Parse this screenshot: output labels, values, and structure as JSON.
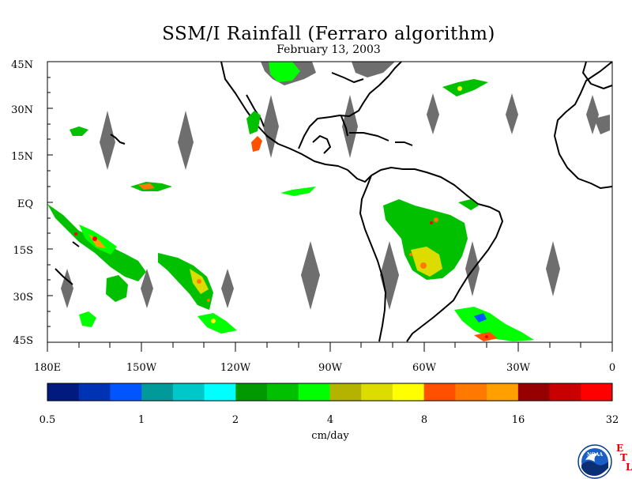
{
  "title": "SSM/I Rainfall (Ferraro algorithm)",
  "subtitle": "February 13, 2003",
  "map": {
    "lat_labels": [
      "45N",
      "30N",
      "15N",
      "EQ",
      "15S",
      "30S",
      "45S"
    ],
    "lon_labels": [
      "180E",
      "150W",
      "120W",
      "90W",
      "60W",
      "30W",
      "0"
    ],
    "extent": {
      "lon": [
        -180,
        0
      ],
      "lat": [
        -45,
        45
      ]
    }
  },
  "colorbar": {
    "colors": [
      "#001a80",
      "#0033b3",
      "#0055ff",
      "#009a9a",
      "#00c8c8",
      "#00ffff",
      "#009900",
      "#00c000",
      "#00ff00",
      "#b4b400",
      "#dcdc00",
      "#ffff00",
      "#ff5000",
      "#ff7800",
      "#ffa000",
      "#960000",
      "#c80000",
      "#ff0000"
    ],
    "tick_labels": [
      "0.5",
      "1",
      "2",
      "4",
      "8",
      "16",
      "32"
    ],
    "unit_label": "cm/day"
  },
  "logo": {
    "noaa_text": "NOAA",
    "etl_letters": [
      "E",
      "T",
      "L"
    ]
  }
}
